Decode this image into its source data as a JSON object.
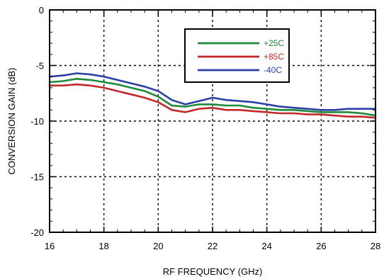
{
  "chart_data": {
    "type": "line",
    "title": "",
    "xlabel": "RF FREQUENCY (GHz)",
    "ylabel": "CONVERSION GAIN (dB)",
    "xlim": [
      16,
      28
    ],
    "ylim": [
      -20,
      0
    ],
    "xticks": [
      16,
      18,
      20,
      22,
      24,
      26,
      28
    ],
    "yticks": [
      0,
      -5,
      -10,
      -15,
      -20
    ],
    "xtick_labels": [
      "16",
      "18",
      "20",
      "22",
      "24",
      "26",
      "28"
    ],
    "ytick_labels": [
      "0",
      "-5",
      "-10",
      "-15",
      "-20"
    ],
    "grid": true,
    "legend_position": "top-right",
    "series": [
      {
        "name": "+25C",
        "color": "#1e8a3c",
        "x": [
          16,
          16.5,
          17,
          17.5,
          18,
          18.5,
          19,
          19.5,
          20,
          20.5,
          21,
          21.5,
          22,
          22.5,
          23,
          23.5,
          24,
          24.5,
          25,
          25.5,
          26,
          26.5,
          27,
          27.5,
          28
        ],
        "y": [
          -6.5,
          -6.4,
          -6.2,
          -6.3,
          -6.5,
          -6.7,
          -7.0,
          -7.3,
          -7.8,
          -8.6,
          -8.7,
          -8.5,
          -8.5,
          -8.6,
          -8.6,
          -8.8,
          -8.9,
          -9.0,
          -9.0,
          -9.1,
          -9.2,
          -9.2,
          -9.2,
          -9.3,
          -9.5
        ]
      },
      {
        "name": "+85C",
        "color": "#c0282a",
        "x": [
          16,
          16.5,
          17,
          17.5,
          18,
          18.5,
          19,
          19.5,
          20,
          20.5,
          21,
          21.5,
          22,
          22.5,
          23,
          23.5,
          24,
          24.5,
          25,
          25.5,
          26,
          26.5,
          27,
          27.5,
          28
        ],
        "y": [
          -6.8,
          -6.8,
          -6.7,
          -6.8,
          -7.0,
          -7.3,
          -7.6,
          -7.9,
          -8.3,
          -9.0,
          -9.2,
          -8.9,
          -8.8,
          -9.0,
          -9.0,
          -9.1,
          -9.2,
          -9.3,
          -9.3,
          -9.4,
          -9.4,
          -9.5,
          -9.6,
          -9.6,
          -9.7
        ]
      },
      {
        "name": "-40C",
        "color": "#2b3fa8",
        "x": [
          16,
          16.5,
          17,
          17.5,
          18,
          18.5,
          19,
          19.5,
          20,
          20.5,
          21,
          21.5,
          22,
          22.5,
          23,
          23.5,
          24,
          24.5,
          25,
          25.5,
          26,
          26.5,
          27,
          27.5,
          28
        ],
        "y": [
          -6.0,
          -5.9,
          -5.7,
          -5.8,
          -6.0,
          -6.3,
          -6.6,
          -6.9,
          -7.3,
          -8.1,
          -8.5,
          -8.2,
          -7.9,
          -8.1,
          -8.2,
          -8.3,
          -8.5,
          -8.7,
          -8.8,
          -8.9,
          -9.0,
          -9.0,
          -8.9,
          -8.9,
          -8.9
        ]
      }
    ]
  }
}
